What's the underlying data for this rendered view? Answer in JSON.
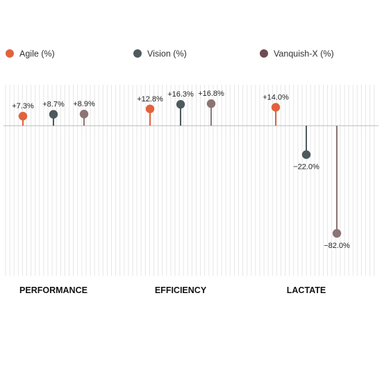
{
  "chart_data": {
    "type": "lollipop",
    "categories": [
      "PERFORMANCE",
      "EFFICIENCY",
      "LACTATE"
    ],
    "series": [
      {
        "name": "Agile (%)",
        "values": [
          7.3,
          12.8,
          14.0
        ],
        "labels": [
          "+7.3%",
          "+12.8%",
          "+14.0%"
        ]
      },
      {
        "name": "Vision (%)",
        "values": [
          8.7,
          16.3,
          -22.0
        ],
        "labels": [
          "+8.7%",
          "+16.3%",
          "−22.0%"
        ]
      },
      {
        "name": "Vanquish-X (%)",
        "values": [
          8.9,
          16.8,
          -82.0
        ],
        "labels": [
          "+8.9%",
          "+16.8%",
          "−82.0%"
        ]
      }
    ],
    "colors": [
      "#e2623c",
      "#4d5a5e",
      "#8c7474"
    ],
    "legend_colors": [
      "#e2623c",
      "#4d5a5e",
      "#6b4d53"
    ],
    "ylim": [
      -100,
      30
    ],
    "legend_position": "top",
    "grid": "vertical"
  }
}
